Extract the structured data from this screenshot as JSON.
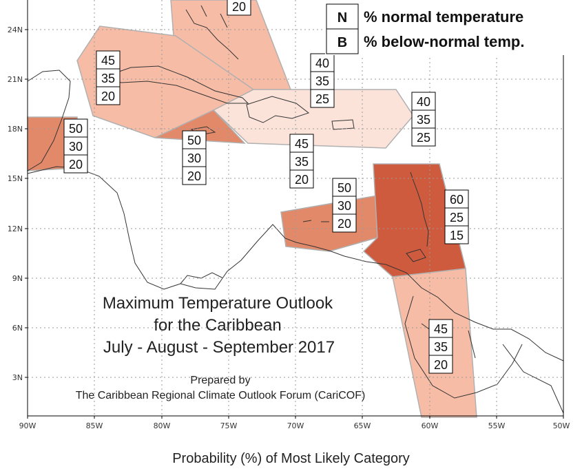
{
  "map": {
    "title_lines": [
      "Maximum Temperature Outlook",
      "for the Caribbean",
      "July - August - September 2017"
    ],
    "prepared_by": "Prepared by",
    "organization": "The Caribbean Regional Climate Outlook Forum (CariCOF)",
    "footer": "Probability (%) of Most Likely Category",
    "lat_labels": [
      "24N",
      "21N",
      "18N",
      "15N",
      "12N",
      "9N",
      "6N",
      "3N"
    ],
    "lon_labels": [
      "90W",
      "85W",
      "80W",
      "75W",
      "70W",
      "65W",
      "60W",
      "55W",
      "50W"
    ],
    "legend": [
      {
        "key": "N",
        "text": "% normal temperature"
      },
      {
        "key": "B",
        "text": "% below-normal temp."
      }
    ],
    "probability_boxes": [
      {
        "id": "bahamas",
        "values": [
          "20"
        ]
      },
      {
        "id": "cuba",
        "values": [
          "45",
          "35",
          "20"
        ]
      },
      {
        "id": "hispaniola",
        "values": [
          "40",
          "35",
          "25"
        ]
      },
      {
        "id": "leeward",
        "values": [
          "40",
          "35",
          "25"
        ]
      },
      {
        "id": "belize",
        "values": [
          "50",
          "30",
          "20"
        ]
      },
      {
        "id": "jamaica",
        "values": [
          "50",
          "30",
          "20"
        ]
      },
      {
        "id": "caribbean-sea",
        "values": [
          "45",
          "35",
          "20"
        ]
      },
      {
        "id": "abc-islands",
        "values": [
          "50",
          "30",
          "20"
        ]
      },
      {
        "id": "windward",
        "values": [
          "60",
          "25",
          "15"
        ]
      },
      {
        "id": "guianas",
        "values": [
          "45",
          "35",
          "20"
        ]
      }
    ],
    "colors": {
      "above_40": "#fbe3da",
      "above_45": "#f7bca6",
      "above_50": "#e2896a",
      "above_60": "#cf5b3f",
      "region_border": "#b0b0b0",
      "grid": "#9a9a9a",
      "coast": "#333333"
    }
  }
}
